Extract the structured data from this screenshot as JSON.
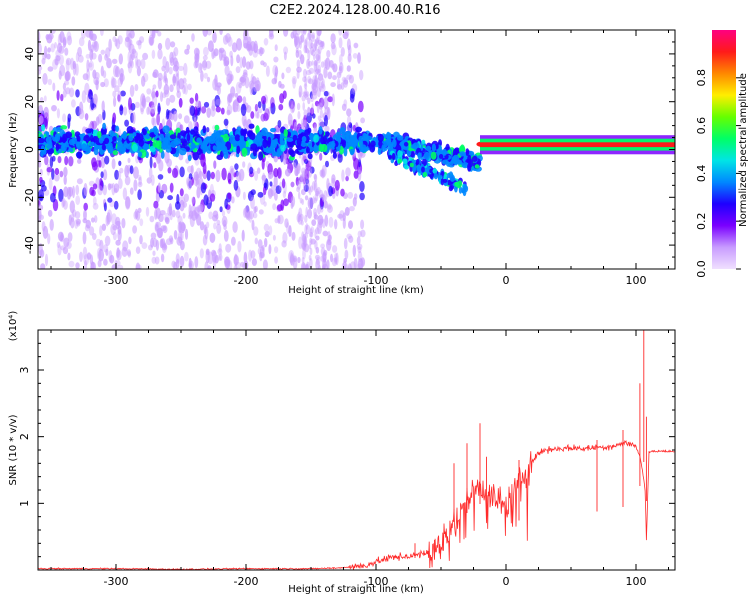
{
  "title": "C2E2.2024.128.00.40.R16",
  "chart_data": [
    {
      "type": "heatmap",
      "title": "C2E2.2024.128.00.40.R16",
      "xlabel": "Height of straight line (km)",
      "ylabel": "Frequency (Hz)",
      "xlim": [
        -360,
        130
      ],
      "ylim": [
        -50,
        50
      ],
      "x_ticks": [
        -300,
        -200,
        -100,
        0,
        100
      ],
      "y_ticks": [
        -40,
        -20,
        0,
        20,
        40
      ],
      "colorbar": {
        "label": "Normalized spectral amplitude",
        "range": [
          0,
          1
        ],
        "ticks": [
          "0.0",
          "0.2",
          "0.4",
          "0.6",
          "0.8"
        ],
        "colors": [
          "#f0e0ff",
          "#c89cff",
          "#7a00ff",
          "#1e00ff",
          "#0088ff",
          "#00e5e5",
          "#00ff66",
          "#66ff00",
          "#ffee00",
          "#ff8800",
          "#ff1a1a",
          "#ff0080"
        ]
      },
      "features": [
        {
          "name": "broadband-noise",
          "x": [
            -360,
            -110
          ],
          "freq": [
            -50,
            50
          ],
          "amplitude": 0.05
        },
        {
          "name": "noise-column",
          "x": [
            -160,
            -140
          ],
          "freq": [
            -50,
            50
          ],
          "amplitude": 0.06
        },
        {
          "name": "core-band",
          "x": [
            -360,
            -20
          ],
          "freq": [
            -8,
            14
          ],
          "amplitude": 0.28
        },
        {
          "name": "dispersed-tail",
          "x": [
            -90,
            -30
          ],
          "freq": [
            -22,
            0
          ],
          "amplitude": 0.25
        },
        {
          "name": "carrier-line",
          "x": [
            -20,
            130
          ],
          "freq": [
            1,
            3
          ],
          "amplitude": 0.92
        }
      ]
    },
    {
      "type": "line",
      "xlabel": "Height of straight line (km)",
      "ylabel": "SNR (10 * v/v)",
      "multiplier": "(x10⁴)",
      "color": "#ff2a2a",
      "xlim": [
        -360,
        130
      ],
      "ylim": [
        0,
        3.6
      ],
      "x_ticks": [
        -300,
        -200,
        -100,
        0,
        100
      ],
      "y_ticks": [
        1,
        2,
        3
      ],
      "series": [
        {
          "x": [
            -360,
            -300,
            -250,
            -200,
            -150,
            -130,
            -110,
            -100,
            -90,
            -80,
            -70,
            -60,
            -50,
            -45,
            -40,
            -35,
            -30,
            -25,
            -20,
            -15,
            -10,
            -5,
            0,
            5,
            10,
            15,
            20,
            25,
            30,
            40,
            50,
            60,
            70,
            80,
            90,
            95,
            100,
            103,
            105,
            107,
            108,
            110,
            112,
            115,
            120,
            125,
            130
          ],
          "y": [
            0.02,
            0.02,
            0.01,
            0.02,
            0.02,
            0.03,
            0.06,
            0.12,
            0.18,
            0.2,
            0.22,
            0.25,
            0.4,
            0.6,
            0.75,
            0.85,
            1.05,
            1.2,
            1.3,
            1.2,
            1.1,
            1.0,
            1.0,
            1.1,
            1.3,
            1.5,
            1.62,
            1.75,
            1.8,
            1.82,
            1.83,
            1.82,
            1.84,
            1.85,
            1.9,
            1.9,
            1.85,
            1.7,
            1.5,
            1.2,
            0.45,
            1.78,
            1.78,
            1.78,
            1.78,
            1.78,
            1.77
          ],
          "spikes": [
            {
              "x": -70,
              "y": 0.4
            },
            {
              "x": -55,
              "y": 0.45
            },
            {
              "x": -40,
              "y": 1.6
            },
            {
              "x": -30,
              "y": 1.9
            },
            {
              "x": -20,
              "y": 2.2
            },
            {
              "x": -15,
              "y": 1.7
            },
            {
              "x": 10,
              "y": 1.65
            },
            {
              "x": 70,
              "y": 1.95
            },
            {
              "x": 90,
              "y": 2.1
            },
            {
              "x": 103,
              "y": 2.8
            },
            {
              "x": 106,
              "y": 3.6
            },
            {
              "x": 108,
              "y": 2.3
            }
          ]
        }
      ]
    }
  ]
}
